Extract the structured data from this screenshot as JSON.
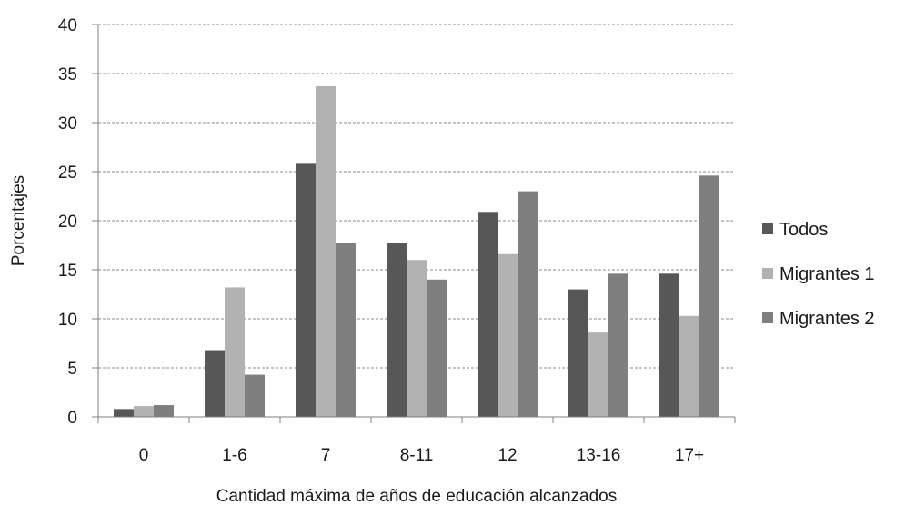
{
  "chart_data": {
    "type": "bar",
    "title": "",
    "xlabel": "Cantidad máxima de años de educación alcanzados",
    "ylabel": "Porcentajes",
    "categories": [
      "0",
      "1-6",
      "7",
      "8-11",
      "12",
      "13-16",
      "17+"
    ],
    "series": [
      {
        "name": "Todos",
        "values": [
          0.8,
          6.8,
          25.8,
          17.7,
          20.9,
          13.0,
          14.6
        ],
        "color": "#575757"
      },
      {
        "name": "Migrantes 1",
        "values": [
          1.1,
          13.2,
          33.7,
          16.0,
          16.6,
          8.6,
          10.3
        ],
        "color": "#b2b2b2"
      },
      {
        "name": "Migrantes 2",
        "values": [
          1.2,
          4.3,
          17.7,
          14.0,
          23.0,
          14.6,
          24.6
        ],
        "color": "#7f7f7f"
      }
    ],
    "ylim": [
      0,
      40
    ],
    "yticks": [
      "0",
      "5",
      "10",
      "15",
      "20",
      "25",
      "30",
      "35",
      "40"
    ],
    "grid": true,
    "legend": "right"
  }
}
